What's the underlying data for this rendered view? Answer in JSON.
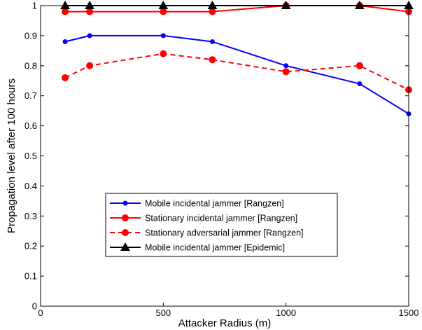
{
  "chart_data": {
    "type": "line",
    "title": "",
    "xlabel": "Attacker Radius (m)",
    "ylabel": "Propagation level after 100 hours",
    "xlim": [
      0,
      1500
    ],
    "ylim": [
      0,
      1
    ],
    "xticks": [
      0,
      500,
      1000,
      1500
    ],
    "xtick_labels": [
      "0",
      "500",
      "1000",
      "1500"
    ],
    "yticks": [
      0,
      0.1,
      0.2,
      0.3,
      0.4,
      0.5,
      0.6,
      0.7,
      0.8,
      0.9,
      1
    ],
    "ytick_labels": [
      "0",
      "0.1",
      "0.2",
      "0.3",
      "0.4",
      "0.5",
      "0.6",
      "0.7",
      "0.8",
      "0.9",
      "1"
    ],
    "grid": false,
    "legend_position": "lower-center",
    "x": [
      100,
      200,
      500,
      700,
      1000,
      1300,
      1500
    ],
    "series": [
      {
        "name": "Mobile incidental jammer [Rangzen]",
        "values": [
          0.88,
          0.9,
          0.9,
          0.88,
          0.8,
          0.74,
          0.64
        ],
        "color": "#0000ff",
        "line_style": "solid",
        "marker": "dot"
      },
      {
        "name": "Stationary incidental jammer [Rangzen]",
        "values": [
          0.98,
          0.98,
          0.98,
          0.98,
          1.0,
          1.0,
          0.98
        ],
        "color": "#ff0000",
        "line_style": "solid",
        "marker": "circle"
      },
      {
        "name": "Stationary adversarial jammer [Rangzen]",
        "values": [
          0.76,
          0.8,
          0.84,
          0.82,
          0.78,
          0.8,
          0.72
        ],
        "color": "#ff0000",
        "line_style": "dashed",
        "marker": "circle"
      },
      {
        "name": "Mobile incidental jammer [Epidemic]",
        "values": [
          1.0,
          1.0,
          1.0,
          1.0,
          1.0,
          1.0,
          1.0
        ],
        "color": "#000000",
        "line_style": "solid",
        "marker": "triangle"
      }
    ]
  }
}
